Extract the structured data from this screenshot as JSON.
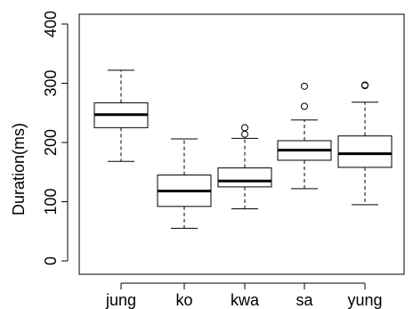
{
  "chart_data": {
    "type": "boxplot",
    "ylabel": "Duration(ms)",
    "ylim": [
      0,
      400
    ],
    "yticks": [
      0,
      100,
      200,
      300,
      400
    ],
    "grid": false,
    "categories": [
      "jung",
      "ko",
      "kwa",
      "sa",
      "yung"
    ],
    "boxes": [
      {
        "category": "jung",
        "whisker_low": 168,
        "q1": 225,
        "median": 247,
        "q3": 267,
        "whisker_high": 322,
        "outliers": []
      },
      {
        "category": "ko",
        "whisker_low": 55,
        "q1": 92,
        "median": 118,
        "q3": 145,
        "whisker_high": 206,
        "outliers": []
      },
      {
        "category": "kwa",
        "whisker_low": 88,
        "q1": 125,
        "median": 135,
        "q3": 157,
        "whisker_high": 207,
        "outliers": [
          214,
          225
        ]
      },
      {
        "category": "sa",
        "whisker_low": 122,
        "q1": 170,
        "median": 187,
        "q3": 203,
        "whisker_high": 238,
        "outliers": [
          261,
          295
        ]
      },
      {
        "category": "yung",
        "whisker_low": 95,
        "q1": 158,
        "median": 181,
        "q3": 211,
        "whisker_high": 268,
        "outliers": [
          296,
          297
        ]
      }
    ]
  }
}
